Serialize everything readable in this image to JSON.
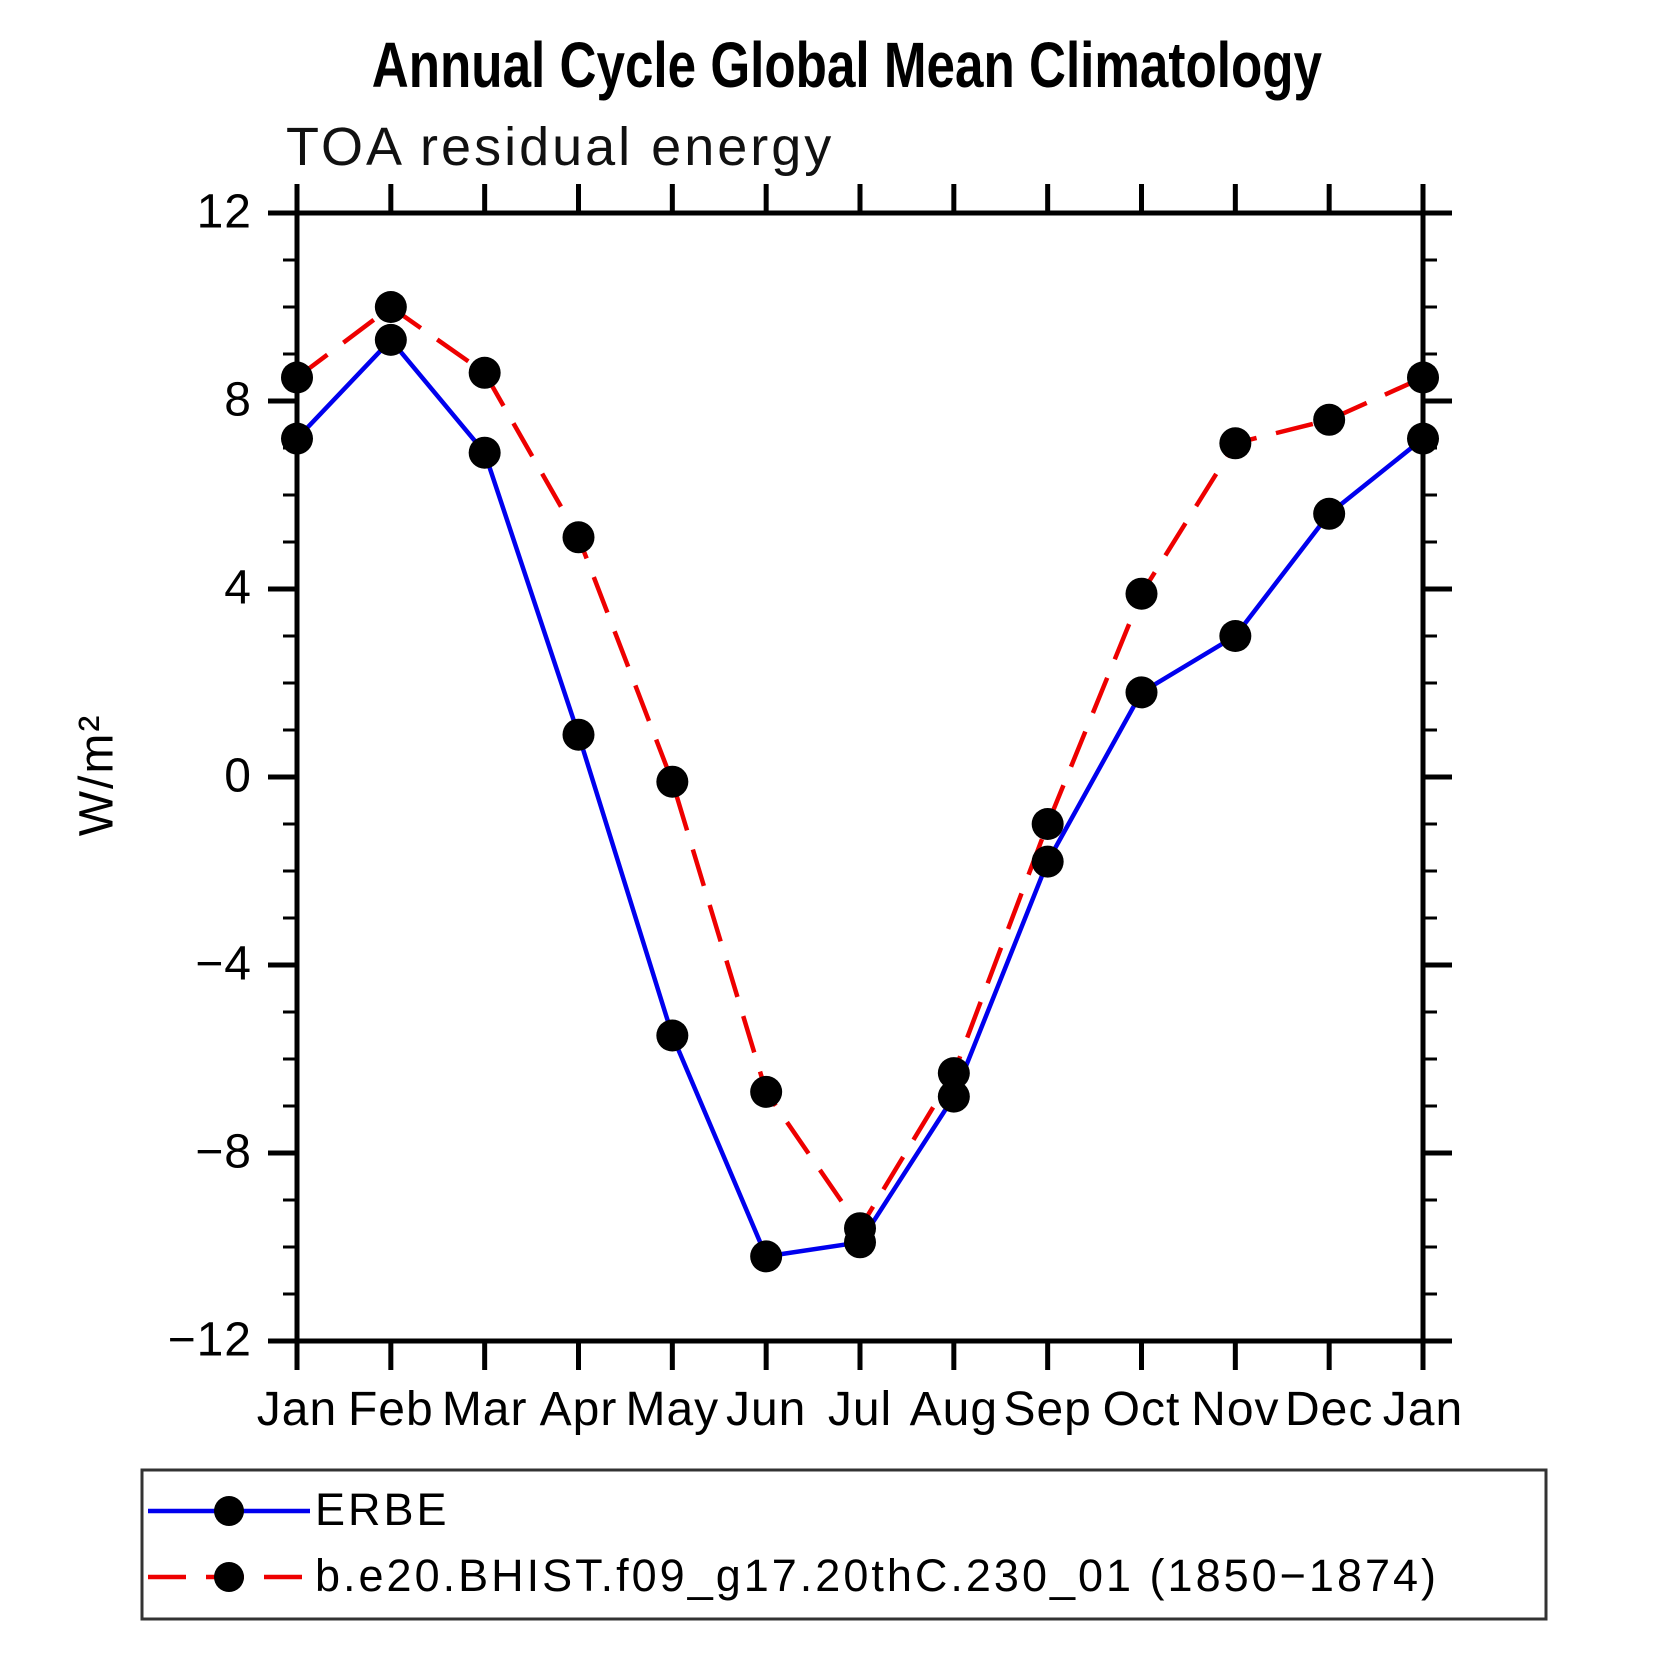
{
  "page": {
    "title": "Annual Cycle Global Mean Climatology",
    "subtitle": "TOA residual energy"
  },
  "chart_data": {
    "type": "line",
    "title": "Annual Cycle Global Mean Climatology",
    "subtitle": "TOA residual energy",
    "ylabel": "W/m²",
    "xlabel": "",
    "categories": [
      "Jan",
      "Feb",
      "Mar",
      "Apr",
      "May",
      "Jun",
      "Jul",
      "Aug",
      "Sep",
      "Oct",
      "Nov",
      "Dec",
      "Jan"
    ],
    "ylim": [
      -12,
      12
    ],
    "y_major_tick_values": [
      12,
      8,
      4,
      0,
      -4,
      -8,
      -12
    ],
    "y_tick_labels": [
      "12",
      "8",
      "4",
      "0",
      "−4",
      "−8",
      "−12"
    ],
    "y_minor_tick_step": 1,
    "grid": false,
    "legend_position": "bottom-left-box",
    "marker": "filled-circle",
    "marker_color": "#000000",
    "axis_color": "#000000",
    "series": [
      {
        "name": "ERBE",
        "color": "#0000ee",
        "line_style": "solid",
        "values": [
          7.2,
          9.3,
          6.9,
          0.9,
          -5.5,
          -10.2,
          -9.9,
          -6.8,
          -1.8,
          1.8,
          3.0,
          5.6,
          7.2
        ]
      },
      {
        "name": "b.e20.BHIST.f09_g17.20thC.230_01 (1850−1874)",
        "color": "#ee0000",
        "line_style": "dashed",
        "values": [
          8.5,
          10.0,
          8.6,
          5.1,
          -0.1,
          -6.7,
          -9.6,
          -6.3,
          -1.0,
          3.9,
          7.1,
          7.6,
          8.5
        ]
      }
    ]
  },
  "legend": {
    "entries": [
      {
        "label": "ERBE"
      },
      {
        "label": "b.e20.BHIST.f09_g17.20thC.230_01 (1850−1874)"
      }
    ]
  }
}
